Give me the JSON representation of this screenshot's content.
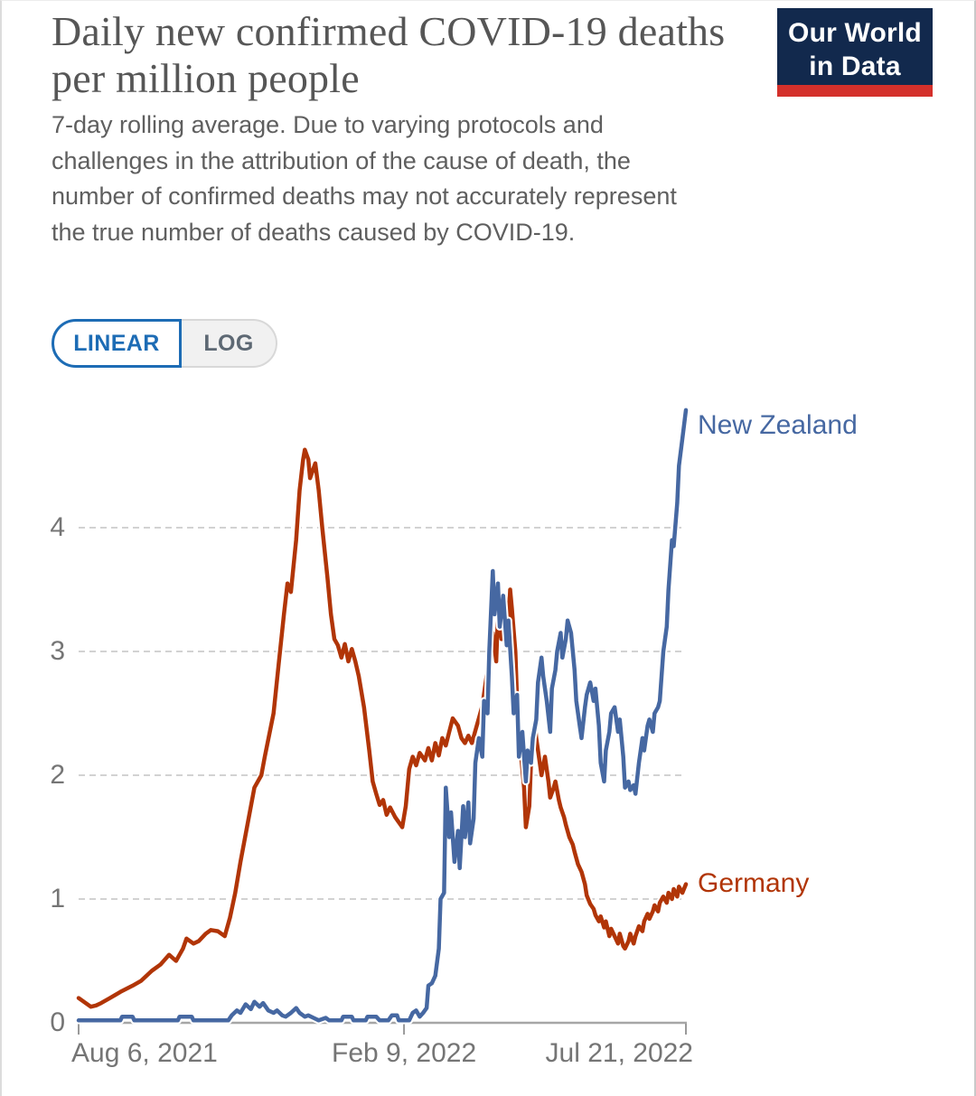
{
  "header": {
    "title": "Daily new confirmed COVID-19 deaths per million people",
    "subtitle": "7-day rolling average. Due to varying protocols and challenges in the attribution of the cause of death, the number of confirmed deaths may not accurately represent the true number of deaths caused by COVID-19.",
    "logo": {
      "line1": "Our World",
      "line2": "in Data",
      "bg_color": "#12294D",
      "bar_color": "#D4302B"
    }
  },
  "toggle": {
    "linear_label": "LINEAR",
    "log_label": "LOG",
    "active": "LINEAR",
    "active_color": "#1D6CB5"
  },
  "chart_data": {
    "type": "line",
    "title": "Daily new confirmed COVID-19 deaths per million people",
    "xlabel": "",
    "ylabel": "",
    "x_axis": {
      "unit": "days since Aug 6, 2021",
      "range_days": [
        0,
        349
      ],
      "tick_days": [
        0,
        187,
        349
      ],
      "tick_labels": [
        "Aug 6, 2021",
        "Feb 9, 2022",
        "Jul 21, 2022"
      ],
      "tick_align": [
        "start",
        "center",
        "end"
      ]
    },
    "y_axis": {
      "ticks": [
        0,
        1,
        2,
        3,
        4
      ],
      "tick_labels": [
        "0",
        "1",
        "2",
        "3",
        "4"
      ],
      "range": [
        0,
        5
      ]
    },
    "grid": "horizontal-dashed",
    "grid_color": "#d2d2d2",
    "axis_color": "#a6a6a6",
    "legend_position": "line-end-labels",
    "series": [
      {
        "name": "Germany",
        "color": "#B13507",
        "points": [
          [
            0,
            0.2
          ],
          [
            4,
            0.16
          ],
          [
            7,
            0.13
          ],
          [
            10,
            0.14
          ],
          [
            13,
            0.16
          ],
          [
            18,
            0.2
          ],
          [
            24,
            0.25
          ],
          [
            31,
            0.3
          ],
          [
            36,
            0.34
          ],
          [
            42,
            0.42
          ],
          [
            47,
            0.47
          ],
          [
            52,
            0.55
          ],
          [
            56,
            0.5
          ],
          [
            60,
            0.6
          ],
          [
            62,
            0.68
          ],
          [
            66,
            0.64
          ],
          [
            69,
            0.66
          ],
          [
            73,
            0.72
          ],
          [
            76,
            0.75
          ],
          [
            80,
            0.74
          ],
          [
            84,
            0.7
          ],
          [
            87,
            0.85
          ],
          [
            90,
            1.05
          ],
          [
            93,
            1.3
          ],
          [
            97,
            1.6
          ],
          [
            101,
            1.9
          ],
          [
            105,
            2.0
          ],
          [
            107,
            2.15
          ],
          [
            112,
            2.5
          ],
          [
            115,
            2.9
          ],
          [
            118,
            3.3
          ],
          [
            120,
            3.55
          ],
          [
            122,
            3.48
          ],
          [
            125,
            3.9
          ],
          [
            127,
            4.3
          ],
          [
            129,
            4.55
          ],
          [
            130,
            4.63
          ],
          [
            132,
            4.55
          ],
          [
            133,
            4.4
          ],
          [
            136,
            4.52
          ],
          [
            138,
            4.3
          ],
          [
            140,
            4.0
          ],
          [
            143,
            3.6
          ],
          [
            145,
            3.3
          ],
          [
            147,
            3.1
          ],
          [
            149,
            3.05
          ],
          [
            151,
            2.95
          ],
          [
            153,
            3.06
          ],
          [
            155,
            2.92
          ],
          [
            157,
            3.02
          ],
          [
            159,
            2.92
          ],
          [
            161,
            2.8
          ],
          [
            164,
            2.55
          ],
          [
            167,
            2.2
          ],
          [
            169,
            1.95
          ],
          [
            171,
            1.85
          ],
          [
            173,
            1.76
          ],
          [
            175,
            1.8
          ],
          [
            177,
            1.68
          ],
          [
            179,
            1.74
          ],
          [
            182,
            1.66
          ],
          [
            184,
            1.62
          ],
          [
            186,
            1.58
          ],
          [
            188,
            1.75
          ],
          [
            190,
            2.05
          ],
          [
            192,
            2.15
          ],
          [
            194,
            2.08
          ],
          [
            196,
            2.18
          ],
          [
            199,
            2.12
          ],
          [
            201,
            2.22
          ],
          [
            203,
            2.12
          ],
          [
            205,
            2.26
          ],
          [
            207,
            2.16
          ],
          [
            209,
            2.3
          ],
          [
            211,
            2.24
          ],
          [
            213,
            2.35
          ],
          [
            215,
            2.46
          ],
          [
            218,
            2.4
          ],
          [
            220,
            2.3
          ],
          [
            222,
            2.26
          ],
          [
            224,
            2.32
          ],
          [
            226,
            2.26
          ],
          [
            228,
            2.36
          ],
          [
            230,
            2.46
          ],
          [
            232,
            2.56
          ],
          [
            234,
            2.76
          ],
          [
            236,
            2.95
          ],
          [
            238,
            3.15
          ],
          [
            240,
            2.92
          ],
          [
            241,
            3.3
          ],
          [
            243,
            3.1
          ],
          [
            245,
            3.45
          ],
          [
            247,
            3.2
          ],
          [
            248,
            3.5
          ],
          [
            249,
            3.35
          ],
          [
            251,
            3.0
          ],
          [
            252,
            2.6
          ],
          [
            254,
            2.2
          ],
          [
            256,
            1.9
          ],
          [
            257,
            1.58
          ],
          [
            259,
            1.75
          ],
          [
            260,
            2.1
          ],
          [
            262,
            2.45
          ],
          [
            263,
            2.3
          ],
          [
            265,
            2.1
          ],
          [
            266,
            2.0
          ],
          [
            268,
            2.15
          ],
          [
            270,
            1.95
          ],
          [
            271,
            1.82
          ],
          [
            273,
            1.9
          ],
          [
            274,
            1.95
          ],
          [
            276,
            1.8
          ],
          [
            277,
            1.74
          ],
          [
            279,
            1.66
          ],
          [
            280,
            1.6
          ],
          [
            282,
            1.5
          ],
          [
            284,
            1.44
          ],
          [
            285,
            1.38
          ],
          [
            287,
            1.28
          ],
          [
            289,
            1.22
          ],
          [
            291,
            1.12
          ],
          [
            292,
            1.03
          ],
          [
            294,
            0.96
          ],
          [
            296,
            0.92
          ],
          [
            297,
            0.87
          ],
          [
            299,
            0.82
          ],
          [
            300,
            0.86
          ],
          [
            302,
            0.77
          ],
          [
            303,
            0.82
          ],
          [
            305,
            0.7
          ],
          [
            306,
            0.76
          ],
          [
            308,
            0.7
          ],
          [
            310,
            0.64
          ],
          [
            311,
            0.72
          ],
          [
            313,
            0.62
          ],
          [
            314,
            0.6
          ],
          [
            316,
            0.66
          ],
          [
            317,
            0.72
          ],
          [
            319,
            0.64
          ],
          [
            320,
            0.7
          ],
          [
            322,
            0.78
          ],
          [
            324,
            0.74
          ],
          [
            325,
            0.82
          ],
          [
            327,
            0.88
          ],
          [
            328,
            0.84
          ],
          [
            330,
            0.9
          ],
          [
            331,
            0.95
          ],
          [
            333,
            0.9
          ],
          [
            334,
            0.97
          ],
          [
            336,
            1.02
          ],
          [
            338,
            0.97
          ],
          [
            339,
            1.05
          ],
          [
            341,
            1.0
          ],
          [
            342,
            1.08
          ],
          [
            344,
            1.02
          ],
          [
            345,
            1.1
          ],
          [
            347,
            1.05
          ],
          [
            349,
            1.12
          ]
        ]
      },
      {
        "name": "New Zealand",
        "color": "#4668A2",
        "points": [
          [
            0,
            0.02
          ],
          [
            24,
            0.02
          ],
          [
            25,
            0.05
          ],
          [
            31,
            0.05
          ],
          [
            32,
            0.02
          ],
          [
            57,
            0.02
          ],
          [
            58,
            0.05
          ],
          [
            65,
            0.05
          ],
          [
            66,
            0.02
          ],
          [
            86,
            0.02
          ],
          [
            88,
            0.06
          ],
          [
            91,
            0.1
          ],
          [
            93,
            0.08
          ],
          [
            96,
            0.15
          ],
          [
            99,
            0.11
          ],
          [
            101,
            0.17
          ],
          [
            104,
            0.13
          ],
          [
            106,
            0.16
          ],
          [
            109,
            0.1
          ],
          [
            112,
            0.08
          ],
          [
            114,
            0.1
          ],
          [
            117,
            0.06
          ],
          [
            119,
            0.05
          ],
          [
            122,
            0.08
          ],
          [
            125,
            0.12
          ],
          [
            127,
            0.08
          ],
          [
            130,
            0.05
          ],
          [
            132,
            0.06
          ],
          [
            135,
            0.04
          ],
          [
            138,
            0.02
          ],
          [
            142,
            0.04
          ],
          [
            144,
            0.02
          ],
          [
            151,
            0.02
          ],
          [
            152,
            0.05
          ],
          [
            157,
            0.05
          ],
          [
            158,
            0.02
          ],
          [
            165,
            0.02
          ],
          [
            166,
            0.05
          ],
          [
            171,
            0.05
          ],
          [
            173,
            0.02
          ],
          [
            178,
            0.02
          ],
          [
            180,
            0.06
          ],
          [
            183,
            0.06
          ],
          [
            184,
            0.02
          ],
          [
            190,
            0.02
          ],
          [
            192,
            0.08
          ],
          [
            194,
            0.1
          ],
          [
            196,
            0.05
          ],
          [
            198,
            0.08
          ],
          [
            200,
            0.12
          ],
          [
            201,
            0.3
          ],
          [
            203,
            0.32
          ],
          [
            205,
            0.38
          ],
          [
            207,
            0.6
          ],
          [
            208,
            1.0
          ],
          [
            210,
            1.05
          ],
          [
            211,
            1.9
          ],
          [
            213,
            1.5
          ],
          [
            214,
            1.7
          ],
          [
            216,
            1.3
          ],
          [
            218,
            1.55
          ],
          [
            219,
            1.25
          ],
          [
            221,
            1.75
          ],
          [
            222,
            1.5
          ],
          [
            224,
            1.78
          ],
          [
            225,
            1.45
          ],
          [
            227,
            1.65
          ],
          [
            228,
            2.1
          ],
          [
            230,
            2.3
          ],
          [
            232,
            2.15
          ],
          [
            233,
            2.6
          ],
          [
            235,
            2.5
          ],
          [
            236,
            3.0
          ],
          [
            238,
            3.65
          ],
          [
            239,
            3.3
          ],
          [
            241,
            3.55
          ],
          [
            242,
            3.2
          ],
          [
            244,
            3.45
          ],
          [
            246,
            3.05
          ],
          [
            247,
            3.25
          ],
          [
            249,
            2.8
          ],
          [
            250,
            2.5
          ],
          [
            252,
            2.65
          ],
          [
            253,
            2.15
          ],
          [
            255,
            2.35
          ],
          [
            257,
            1.95
          ],
          [
            258,
            2.2
          ],
          [
            260,
            2.1
          ],
          [
            261,
            2.3
          ],
          [
            263,
            2.45
          ],
          [
            264,
            2.75
          ],
          [
            266,
            2.95
          ],
          [
            267,
            2.8
          ],
          [
            269,
            2.6
          ],
          [
            271,
            2.35
          ],
          [
            272,
            2.7
          ],
          [
            274,
            2.85
          ],
          [
            275,
            3.0
          ],
          [
            277,
            3.15
          ],
          [
            278,
            2.95
          ],
          [
            280,
            3.1
          ],
          [
            281,
            3.25
          ],
          [
            283,
            3.15
          ],
          [
            285,
            2.85
          ],
          [
            286,
            2.6
          ],
          [
            288,
            2.4
          ],
          [
            289,
            2.3
          ],
          [
            291,
            2.55
          ],
          [
            292,
            2.65
          ],
          [
            294,
            2.75
          ],
          [
            296,
            2.6
          ],
          [
            297,
            2.7
          ],
          [
            299,
            2.4
          ],
          [
            300,
            2.1
          ],
          [
            302,
            1.95
          ],
          [
            303,
            2.2
          ],
          [
            305,
            2.35
          ],
          [
            306,
            2.5
          ],
          [
            308,
            2.55
          ],
          [
            310,
            2.35
          ],
          [
            311,
            2.45
          ],
          [
            313,
            2.15
          ],
          [
            314,
            1.9
          ],
          [
            316,
            1.95
          ],
          [
            317,
            1.88
          ],
          [
            319,
            1.92
          ],
          [
            320,
            1.85
          ],
          [
            322,
            2.1
          ],
          [
            324,
            2.3
          ],
          [
            325,
            2.2
          ],
          [
            327,
            2.4
          ],
          [
            328,
            2.45
          ],
          [
            330,
            2.35
          ],
          [
            331,
            2.5
          ],
          [
            333,
            2.55
          ],
          [
            334,
            2.6
          ],
          [
            336,
            3.0
          ],
          [
            338,
            3.2
          ],
          [
            339,
            3.5
          ],
          [
            341,
            3.9
          ],
          [
            342,
            3.85
          ],
          [
            344,
            4.2
          ],
          [
            345,
            4.5
          ],
          [
            347,
            4.72
          ],
          [
            349,
            4.95
          ]
        ]
      }
    ]
  }
}
